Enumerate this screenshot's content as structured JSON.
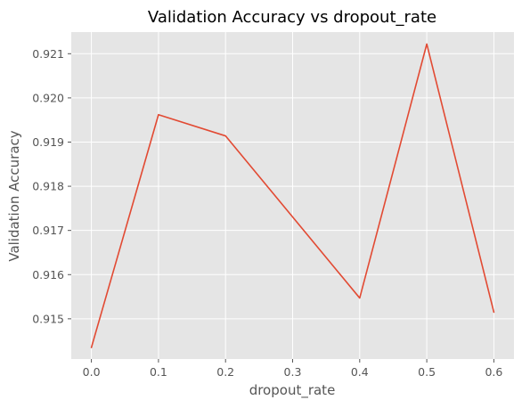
{
  "chart_data": {
    "type": "line",
    "title": "Validation Accuracy vs dropout_rate",
    "xlabel": "dropout_rate",
    "ylabel": "Validation Accuracy",
    "x": [
      0.0,
      0.1,
      0.2,
      0.4,
      0.5,
      0.6
    ],
    "series": [
      {
        "values": [
          0.91435,
          0.91962,
          0.91914,
          0.91547,
          0.92122,
          0.91515
        ]
      }
    ],
    "xlim": [
      -0.03,
      0.63
    ],
    "ylim": [
      0.91409,
      0.92149
    ],
    "xticks": [
      "0.0",
      "0.1",
      "0.2",
      "0.3",
      "0.4",
      "0.5",
      "0.6"
    ],
    "yticks": [
      "0.915",
      "0.916",
      "0.917",
      "0.918",
      "0.919",
      "0.920",
      "0.921"
    ],
    "grid": true,
    "colors": {
      "background": "#e5e5e5",
      "grid": "#ffffff",
      "line": "#e24a33"
    }
  }
}
